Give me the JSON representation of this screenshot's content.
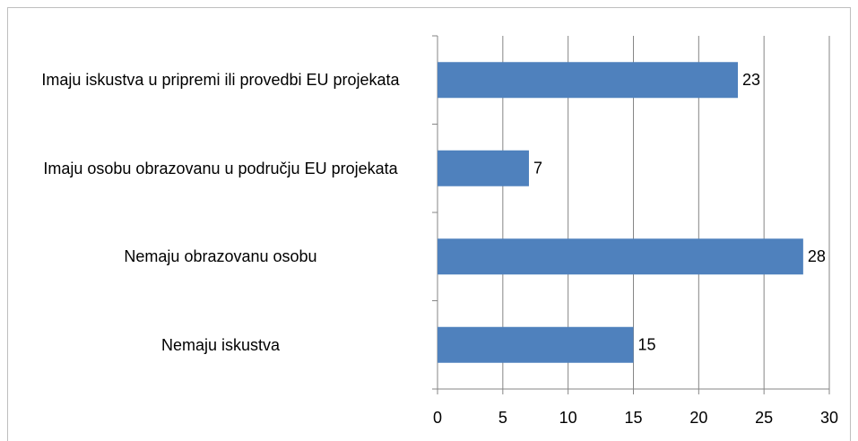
{
  "chart_data": {
    "type": "barh",
    "categories": [
      "Imaju iskustva u pripremi ili provedbi EU projekata",
      "Imaju osobu obrazovanu u području EU projekata",
      "Nemaju obrazovanu osobu",
      "Nemaju iskustva"
    ],
    "values": [
      23,
      7,
      28,
      15
    ],
    "color": "#4f81bd",
    "xlim": [
      0,
      30
    ],
    "xticks": [
      0,
      5,
      10,
      15,
      20,
      25,
      30
    ],
    "grid": true
  }
}
